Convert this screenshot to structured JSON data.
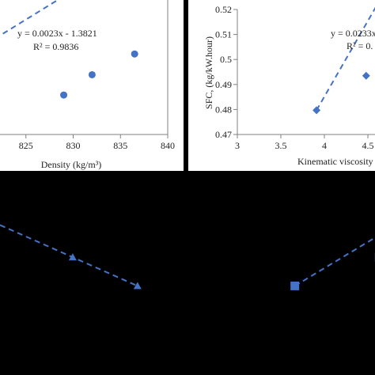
{
  "colors": {
    "series": "#4472c4",
    "axis": "#808080",
    "text": "#222222",
    "background": "#000000"
  },
  "chart_data": [
    {
      "type": "scatter",
      "xlabel": "Density (kg/m³)",
      "ylabel": "",
      "xlim": [
        820,
        840
      ],
      "ylim": [
        0.47,
        0.52
      ],
      "xticks": [
        "825",
        "830",
        "835",
        "840"
      ],
      "x": [
        829,
        832,
        836.5
      ],
      "y": [
        0.4856,
        0.4936,
        0.5018
      ],
      "trendline": {
        "type": "linear",
        "slope": 0.0023,
        "intercept": -1.3821
      },
      "annotations": [
        "y = 0.0023x - 1.3821",
        "R² = 0.9836"
      ],
      "marker": "circle"
    },
    {
      "type": "scatter",
      "xlabel": "Kinematic viscosity",
      "ylabel": "SFC, (kg/kW.hour)",
      "xlim": [
        3,
        5
      ],
      "ylim": [
        0.47,
        0.52
      ],
      "xticks": [
        "3",
        "3.5",
        "4",
        "4.5"
      ],
      "yticks": [
        "0.47",
        "0.48",
        "0.49",
        "0.5",
        "0.51",
        "0.52"
      ],
      "x": [
        3.91,
        4.48
      ],
      "y": [
        0.4797,
        0.4935
      ],
      "trendline": {
        "type": "linear",
        "slope": 0.0233
      },
      "annotations": [
        "y = 0.0233x",
        "R² = 0."
      ],
      "marker": "diamond"
    },
    {
      "type": "scatter",
      "x": [
        1,
        2
      ],
      "y": [
        0.4923,
        0.4802
      ],
      "xlim": [
        0,
        2.1
      ],
      "ylim": [
        0.47,
        0.51
      ],
      "marker": "triangle"
    },
    {
      "type": "scatter",
      "x": [
        1,
        2
      ],
      "y": [
        0.4802,
        0.4923
      ],
      "xlim": [
        0,
        2.1
      ],
      "ylim": [
        0.47,
        0.51
      ],
      "marker": "square"
    }
  ]
}
